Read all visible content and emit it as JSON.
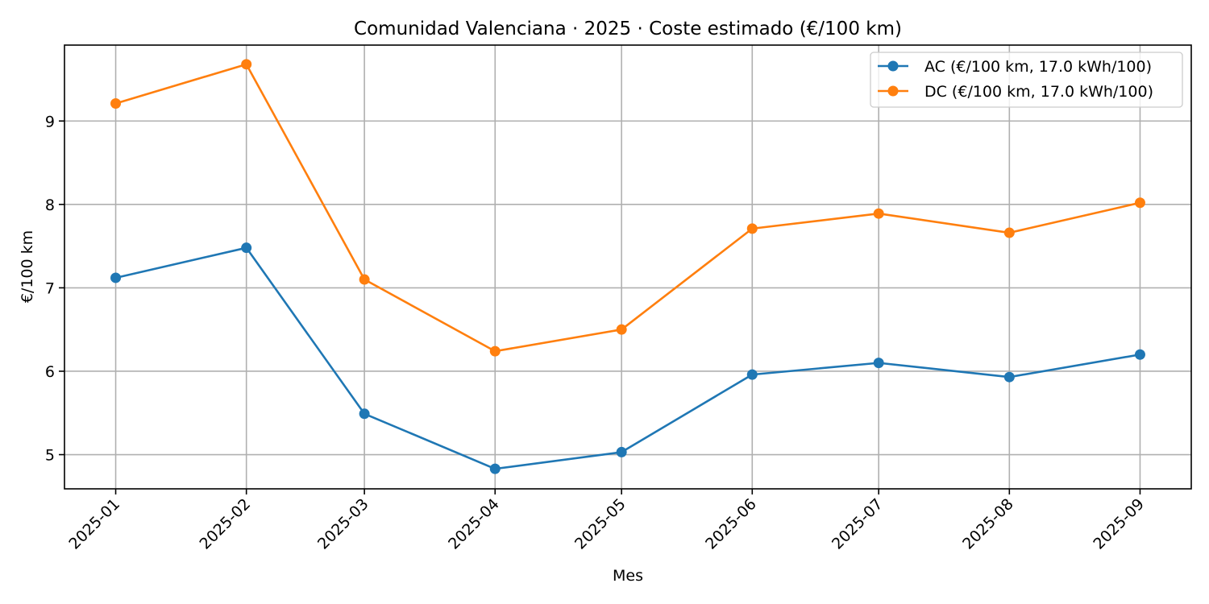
{
  "chart_data": {
    "type": "line",
    "title": "Comunidad Valenciana · 2025 · Coste estimado (€/100 km)",
    "xlabel": "Mes",
    "ylabel": "€/100 km",
    "categories": [
      "2025-01",
      "2025-02",
      "2025-03",
      "2025-04",
      "2025-05",
      "2025-06",
      "2025-07",
      "2025-08",
      "2025-09"
    ],
    "x_dates": [
      "2025-01-01",
      "2025-02-01",
      "2025-03-01",
      "2025-04-01",
      "2025-05-01",
      "2025-06-01",
      "2025-07-01",
      "2025-08-01",
      "2025-09-01"
    ],
    "ylim": [
      4.59,
      9.91
    ],
    "yticks": [
      5,
      6,
      7,
      8,
      9
    ],
    "grid": true,
    "legend_position": "top-right",
    "series": [
      {
        "name": "AC (€/100 km, 17.0 kWh/100)",
        "color": "#1f77b4",
        "marker": "circle",
        "values": [
          7.12,
          7.48,
          5.49,
          4.83,
          5.03,
          5.96,
          6.1,
          5.93,
          6.2
        ]
      },
      {
        "name": "DC (€/100 km, 17.0 kWh/100)",
        "color": "#ff7f0e",
        "marker": "circle",
        "values": [
          9.21,
          9.68,
          7.1,
          6.24,
          6.5,
          7.71,
          7.89,
          7.66,
          8.02
        ]
      }
    ]
  }
}
